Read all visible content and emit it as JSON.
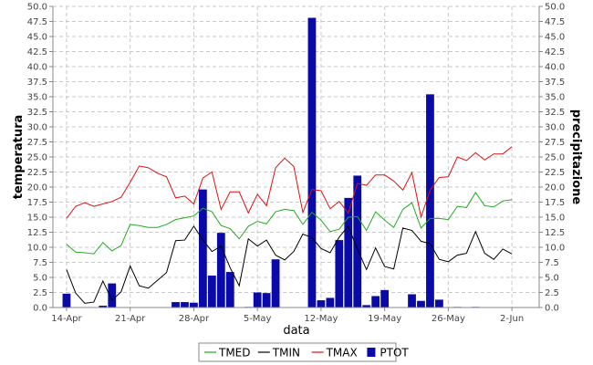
{
  "chart_data": {
    "type": "bar+line",
    "xlabel": "data",
    "ylabel_left": "temperatura",
    "ylabel_right": "precipitazione",
    "ylim": [
      0,
      50
    ],
    "y_ticks": [
      "0.0",
      "2.5",
      "5.0",
      "7.5",
      "10.0",
      "12.5",
      "15.0",
      "17.5",
      "20.0",
      "22.5",
      "25.0",
      "27.5",
      "30.0",
      "32.5",
      "35.0",
      "37.5",
      "40.0",
      "42.5",
      "45.0",
      "47.5",
      "50.0"
    ],
    "x_tick_labels": [
      "14-Apr",
      "21-Apr",
      "28-Apr",
      "5-May",
      "12-May",
      "19-May",
      "26-May",
      "2-Jun"
    ],
    "x_tick_days": [
      0,
      7,
      14,
      21,
      28,
      35,
      42,
      49
    ],
    "x_range_days": [
      -1.5,
      52.0
    ],
    "grid": true,
    "legend_position": "bottom",
    "series": [
      {
        "name": "TMED",
        "kind": "line",
        "color": "#22aa22",
        "values": [
          10.5,
          9.2,
          9.1,
          8.9,
          10.8,
          9.4,
          10.3,
          13.8,
          13.6,
          13.3,
          13.3,
          13.8,
          14.6,
          14.9,
          15.2,
          16.5,
          15.9,
          13.6,
          13.1,
          11.4,
          13.5,
          14.3,
          13.9,
          15.9,
          16.3,
          16.1,
          13.8,
          15.8,
          14.5,
          12.6,
          13.0,
          15.0,
          15.1,
          12.8,
          15.9,
          14.5,
          13.3,
          16.3,
          17.4,
          13.2,
          14.8,
          14.8,
          14.6,
          16.8,
          16.6,
          19.1,
          16.9,
          16.7,
          17.7,
          17.9
        ]
      },
      {
        "name": "TMIN",
        "kind": "line",
        "color": "#000000",
        "values": [
          6.3,
          2.4,
          0.7,
          0.9,
          4.4,
          1.2,
          2.6,
          6.9,
          3.6,
          3.2,
          4.5,
          5.8,
          11.1,
          11.2,
          13.5,
          11.2,
          9.3,
          10.2,
          6.6,
          3.6,
          11.4,
          10.2,
          11.2,
          8.7,
          7.9,
          9.3,
          12.2,
          11.6,
          9.8,
          9.1,
          11.7,
          13.5,
          9.7,
          6.3,
          9.9,
          6.8,
          6.4,
          13.2,
          12.8,
          11.0,
          10.6,
          8.0,
          7.6,
          8.7,
          9.0,
          12.6,
          9.0,
          8.0,
          9.7,
          8.9
        ]
      },
      {
        "name": "TMAX",
        "kind": "line",
        "color": "#dd1111",
        "values": [
          14.8,
          16.8,
          17.4,
          16.8,
          17.2,
          17.6,
          18.3,
          20.8,
          23.5,
          23.2,
          22.3,
          21.7,
          18.2,
          18.5,
          17.2,
          21.5,
          22.5,
          16.3,
          19.2,
          19.2,
          15.7,
          18.8,
          16.9,
          23.2,
          24.8,
          23.4,
          15.8,
          19.6,
          19.4,
          16.4,
          17.6,
          15.7,
          20.6,
          20.3,
          22.0,
          22.0,
          21.0,
          19.5,
          22.4,
          15.0,
          19.5,
          21.6,
          21.7,
          25.0,
          24.4,
          25.7,
          24.5,
          25.5,
          25.5,
          26.7
        ]
      },
      {
        "name": "PTOT",
        "kind": "bar",
        "color": "#0a0aa8",
        "values": [
          2.3,
          0,
          0,
          0,
          0.3,
          4.0,
          0,
          0,
          0,
          0,
          0,
          0,
          0.9,
          0.9,
          0.8,
          19.6,
          5.3,
          12.4,
          5.9,
          0,
          0.1,
          2.5,
          2.4,
          8.0,
          0,
          0,
          0,
          48.1,
          1.2,
          1.6,
          11.2,
          18.2,
          21.9,
          0.4,
          1.9,
          2.9,
          0,
          0,
          2.2,
          1.1,
          35.4,
          1.3,
          0,
          0.1,
          0,
          0.1,
          0,
          0,
          0,
          0
        ]
      }
    ]
  }
}
